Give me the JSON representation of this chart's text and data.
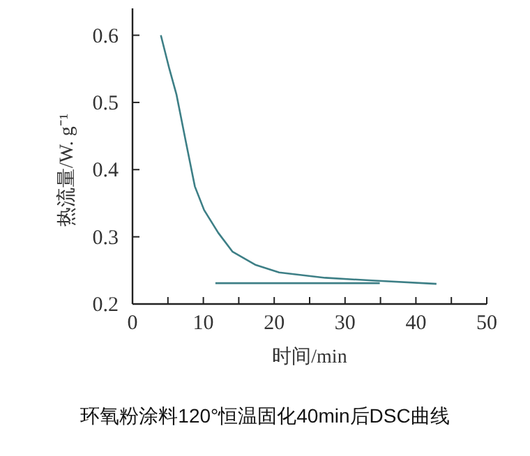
{
  "chart_data": {
    "type": "line",
    "xlabel": "时间/min",
    "ylabel": "热流量/W. g⁻¹",
    "annotations": [
      "环氧粉涂料120°恒温固化40min后DSC曲线"
    ],
    "series": [
      {
        "color": "#3d7f86",
        "x": [
          4.0,
          5.2,
          6.2,
          7.5,
          8.8,
          10.1,
          12.1,
          14.1,
          17.4,
          20.7,
          27.2,
          33.8,
          42.9
        ],
        "values": [
          0.6,
          0.55,
          0.512,
          0.443,
          0.375,
          0.34,
          0.306,
          0.278,
          0.258,
          0.247,
          0.239,
          0.235,
          0.23
        ]
      },
      {
        "color": "#3d7f86",
        "x": [
          11.7,
          34.9
        ],
        "values": [
          0.231,
          0.231
        ]
      }
    ],
    "xlim": [
      0,
      50
    ],
    "ylim": [
      0.2,
      0.64
    ],
    "xticks": [
      0,
      {
        "value": 5,
        "label": null
      },
      10,
      {
        "value": 15,
        "label": null
      },
      20,
      {
        "value": 25,
        "label": null
      },
      30,
      {
        "value": 35,
        "label": null
      },
      40,
      {
        "value": 45,
        "label": null
      },
      50
    ],
    "yticks": [
      0.2,
      0.3,
      0.4,
      0.5,
      0.6
    ],
    "grid": false
  }
}
